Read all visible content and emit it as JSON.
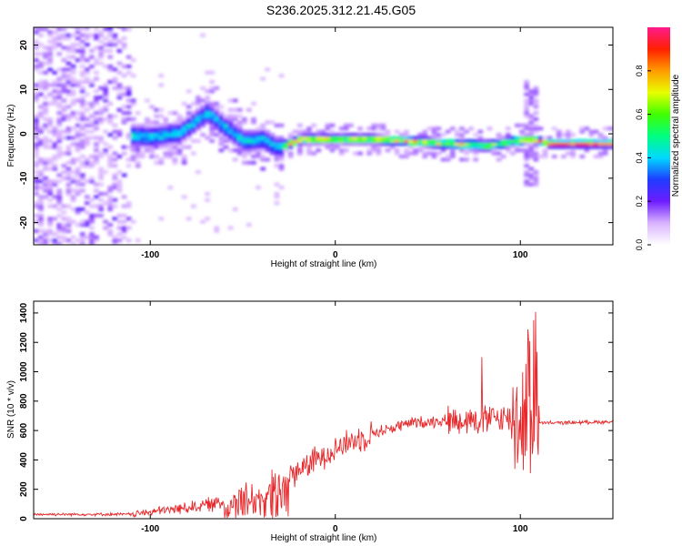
{
  "title": "S236.2025.312.21.45.G05",
  "chart_data": [
    {
      "type": "heatmap",
      "xlabel": "Height of straight line (km)",
      "ylabel": "Frequency (Hz)",
      "xlim": [
        -163,
        150
      ],
      "ylim": [
        -25,
        24
      ],
      "xticks": [
        -100,
        0,
        100
      ],
      "yticks": [
        -20,
        -10,
        0,
        10,
        20
      ],
      "ridge": {
        "description_points_x": [
          -115,
          -100,
          -85,
          -70,
          -60,
          -50,
          -40,
          -32,
          -20,
          0,
          20,
          40,
          60,
          80,
          95,
          105,
          115,
          150
        ],
        "description_points_freq": [
          -0.5,
          -1,
          0,
          4.5,
          1,
          -2,
          -1.5,
          -3.5,
          -1.5,
          -1.5,
          -1.5,
          -2,
          -2.5,
          -3,
          -2,
          -1.5,
          -2.5,
          -2.5
        ]
      }
    },
    {
      "type": "line",
      "xlabel": "Height of straight line (km)",
      "ylabel": "SNR (10 * v/v)",
      "xlim": [
        -163,
        150
      ],
      "ylim": [
        0,
        1480
      ],
      "xticks": [
        -100,
        0,
        100
      ],
      "yticks": [
        0,
        200,
        400,
        600,
        800,
        1000,
        1200,
        1400
      ],
      "line_color": "#e8292c",
      "trend_x": [
        -163,
        -110,
        -90,
        -60,
        -40,
        -30,
        -20,
        0,
        20,
        40,
        60,
        80,
        100,
        110,
        150
      ],
      "trend_y": [
        30,
        30,
        60,
        110,
        180,
        250,
        330,
        480,
        580,
        650,
        670,
        680,
        690,
        650,
        660
      ]
    }
  ],
  "colorbar": {
    "label": "Normalized spectral amplitude",
    "ticks": [
      "0.0",
      "0.2",
      "0.4",
      "0.6",
      "0.8"
    ],
    "tick_values": [
      0,
      0.2,
      0.4,
      0.6,
      0.8
    ],
    "range": [
      0,
      1
    ]
  }
}
